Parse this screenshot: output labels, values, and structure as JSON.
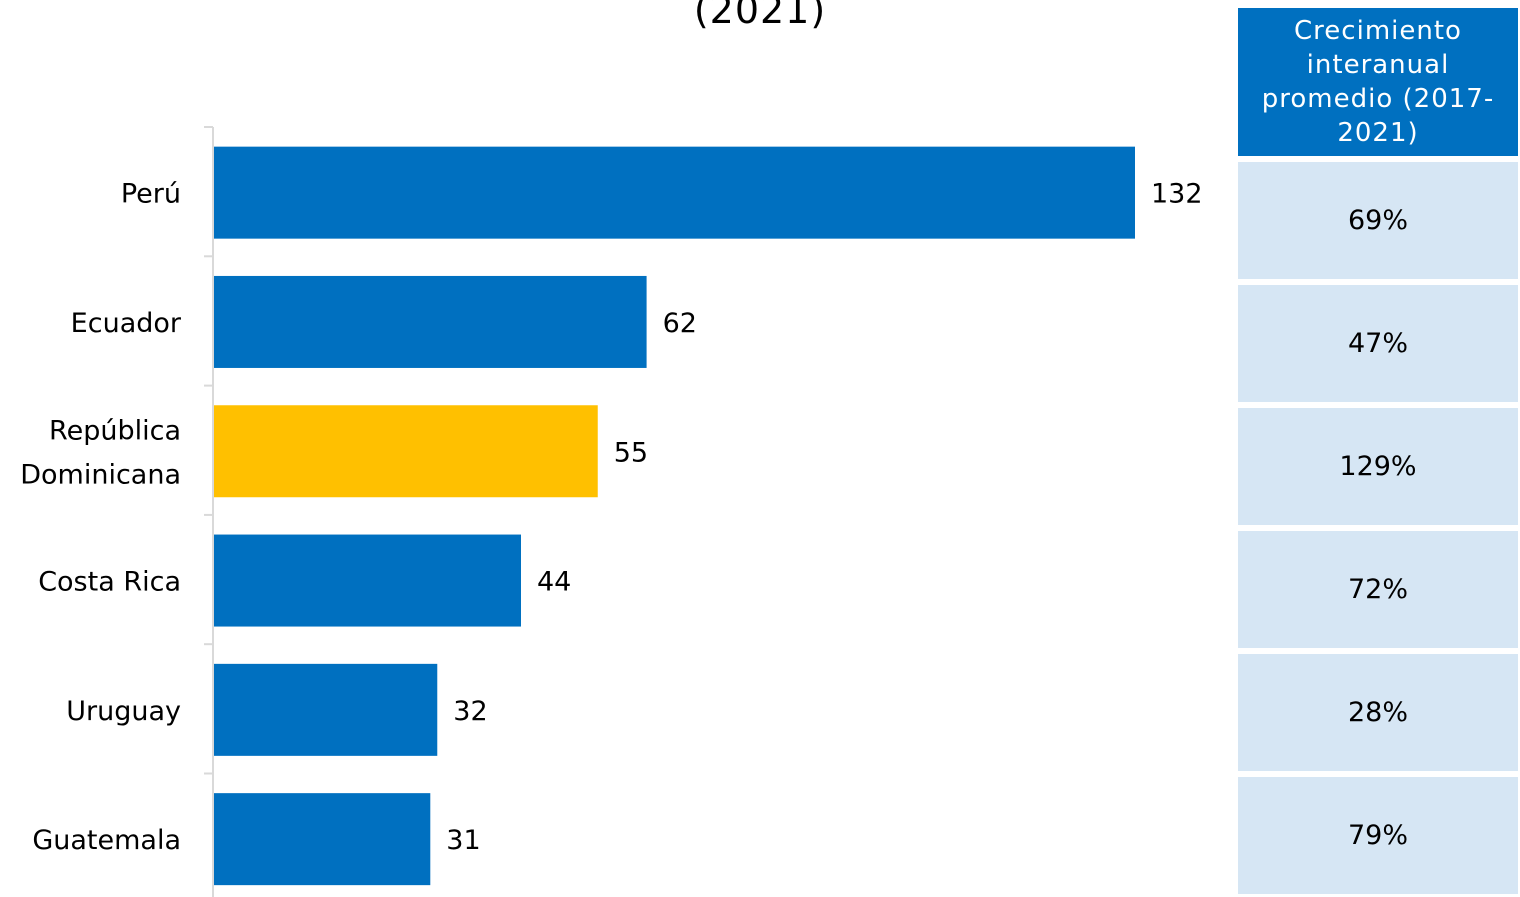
{
  "chart_data": {
    "type": "bar",
    "orientation": "horizontal",
    "subtitle": "(2021)",
    "categories": [
      "Perú",
      "Ecuador",
      "República Dominicana",
      "Costa Rica",
      "Uruguay",
      "Guatemala"
    ],
    "values": [
      132,
      62,
      55,
      44,
      32,
      31
    ],
    "highlight_category": "República Dominicana",
    "colors": {
      "bar": "#0070c0",
      "highlight": "#ffc000",
      "axis": "#d9d9d9"
    },
    "grid": false,
    "legend": "none"
  },
  "side_table": {
    "header": "Crecimiento interanual promedio (2017-2021)",
    "values": [
      "69%",
      "47%",
      "129%",
      "72%",
      "28%",
      "79%"
    ],
    "colors": {
      "header_bg": "#0070c0",
      "header_text": "#ffffff",
      "cell_bg": "#d6e6f4"
    }
  }
}
